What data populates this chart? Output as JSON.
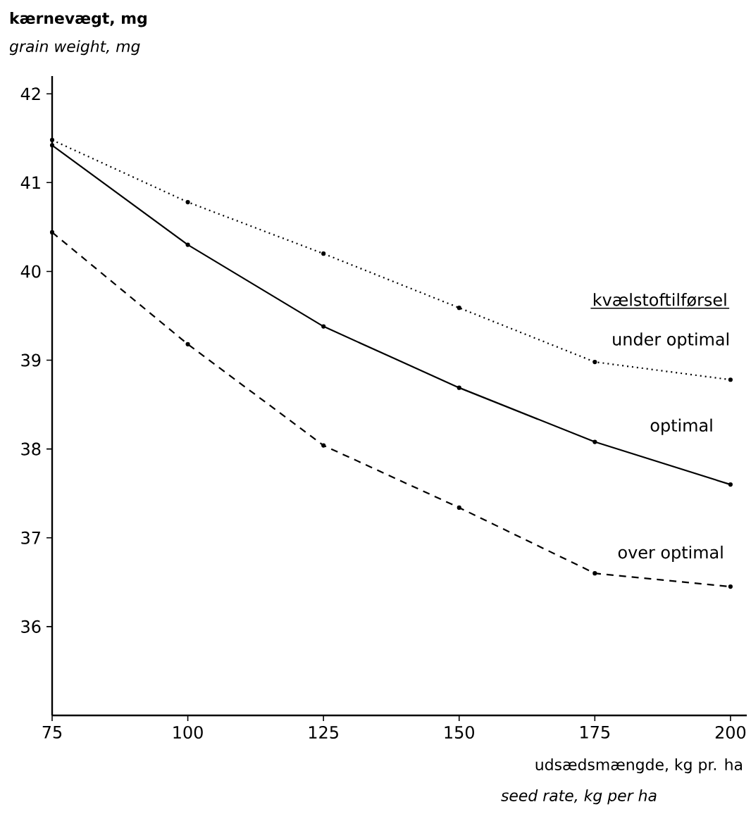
{
  "chart_data": {
    "type": "line",
    "xlabel": "udsædsmængde, kg pr. ha",
    "ylabel": "kærnevægt, mg",
    "legend_title": "kvælstoftilførsel",
    "annotations": [
      "*grain weight, mg*",
      "*seed rate, kg per ha*"
    ],
    "x": [
      75,
      100,
      125,
      150,
      175,
      200
    ],
    "series": [
      {
        "name": "under optimal",
        "color": "#000000",
        "line_style": "dotted",
        "values": [
          41.48,
          40.78,
          40.2,
          39.59,
          38.98,
          38.78
        ]
      },
      {
        "name": "optimal",
        "color": "#000000",
        "line_style": "solid",
        "values": [
          41.42,
          40.3,
          39.38,
          38.69,
          38.08,
          37.6
        ]
      },
      {
        "name": "over optimal",
        "color": "#000000",
        "line_style": "dashed",
        "values": [
          40.44,
          39.18,
          38.04,
          37.34,
          36.6,
          36.45
        ]
      }
    ],
    "xlim": [
      75,
      203
    ],
    "ylim": [
      35,
      42.2
    ],
    "xticks": [
      75,
      100,
      125,
      150,
      175,
      200
    ],
    "yticks": [
      36,
      37,
      38,
      39,
      40,
      41,
      42
    ],
    "grid": false,
    "legend": false,
    "marker": "circle"
  }
}
